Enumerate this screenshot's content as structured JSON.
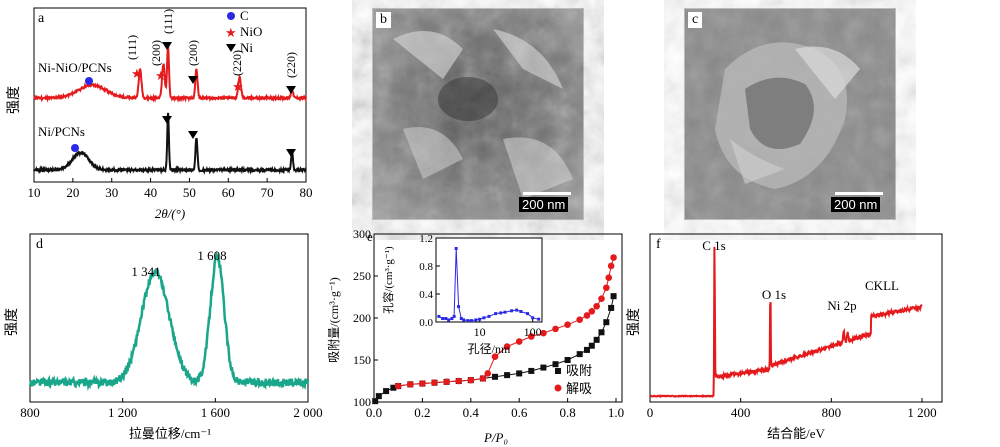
{
  "chart_data": [
    {
      "panel": "a",
      "type": "line",
      "xlabel": "2θ/(°)",
      "ylabel": "强度",
      "x_ticks": [
        "10",
        "20",
        "30",
        "40",
        "50",
        "60",
        "70",
        "80"
      ],
      "xlim": [
        10,
        80
      ],
      "legend": [
        {
          "symbol": "circle",
          "label": "C",
          "color": "#2a2ae6"
        },
        {
          "symbol": "star",
          "label": "NiO",
          "color": "#e41a1c"
        },
        {
          "symbol": "triangle-down",
          "label": "Ni",
          "color": "#000000"
        }
      ],
      "series": [
        {
          "name": "Ni-NiO/PCNs",
          "color": "#e41a1c",
          "peaks": [
            {
              "x": 25,
              "h": 0.25,
              "w": 5
            },
            {
              "x": 37.3,
              "h": 0.55,
              "w": 0.5
            },
            {
              "x": 43.3,
              "h": 0.65,
              "w": 0.5
            },
            {
              "x": 44.5,
              "h": 1.0,
              "w": 0.35
            },
            {
              "x": 51.8,
              "h": 0.55,
              "w": 0.4
            },
            {
              "x": 62.9,
              "h": 0.4,
              "w": 0.5
            },
            {
              "x": 76.4,
              "h": 0.15,
              "w": 0.4
            }
          ]
        },
        {
          "name": "Ni/PCNs",
          "color": "#111111",
          "peaks": [
            {
              "x": 22,
              "h": 0.3,
              "w": 3
            },
            {
              "x": 44.5,
              "h": 1.0,
              "w": 0.3
            },
            {
              "x": 51.8,
              "h": 0.55,
              "w": 0.35
            },
            {
              "x": 76.4,
              "h": 0.3,
              "w": 0.35
            }
          ]
        }
      ],
      "annotations": [
        "(111)",
        "(200)",
        "(111)",
        "(200)",
        "(220)",
        "(220)"
      ]
    },
    {
      "panel": "d",
      "type": "line",
      "xlabel": "拉曼位移/cm⁻¹",
      "ylabel": "强度",
      "x_ticks": [
        "800",
        "1 200",
        "1 600",
        "2 000"
      ],
      "xlim": [
        800,
        2000
      ],
      "peak_labels": [
        "1 341",
        "1 608"
      ],
      "series": [
        {
          "name": "",
          "color": "#1aa68a",
          "peaks": [
            {
              "x": 1341,
              "h": 0.58,
              "w": 85
            },
            {
              "x": 1608,
              "h": 0.66,
              "w": 42
            }
          ],
          "baseline": 0.05
        }
      ]
    },
    {
      "panel": "e",
      "type": "scatter",
      "xlabel": "P/P₀",
      "ylabel": "吸附量/(cm³·g⁻¹)",
      "x_ticks": [
        "0.0",
        "0.2",
        "0.4",
        "0.6",
        "0.8",
        "1.0"
      ],
      "y_ticks": [
        "100",
        "150",
        "200",
        "250",
        "300"
      ],
      "xlim": [
        0,
        1.0
      ],
      "ylim": [
        100,
        300
      ],
      "legend": [
        {
          "symbol": "square",
          "label": "吸附",
          "color": "#111111"
        },
        {
          "symbol": "circle",
          "label": "解吸",
          "color": "#e41a1c"
        }
      ],
      "series": [
        {
          "name": "吸附",
          "color": "#111111",
          "x": [
            0.005,
            0.02,
            0.05,
            0.08,
            0.1,
            0.15,
            0.2,
            0.25,
            0.3,
            0.35,
            0.4,
            0.45,
            0.5,
            0.55,
            0.6,
            0.65,
            0.7,
            0.75,
            0.8,
            0.85,
            0.88,
            0.9,
            0.92,
            0.94,
            0.96,
            0.98,
            0.99
          ],
          "y": [
            101,
            107,
            113,
            117,
            119,
            121,
            122,
            123,
            124,
            125,
            126,
            128,
            130,
            132,
            134,
            137,
            141,
            145,
            150,
            157,
            162,
            167,
            174,
            183,
            195,
            212,
            226
          ]
        },
        {
          "name": "解吸",
          "color": "#e41a1c",
          "x": [
            0.99,
            0.98,
            0.97,
            0.96,
            0.94,
            0.92,
            0.9,
            0.88,
            0.85,
            0.8,
            0.75,
            0.7,
            0.65,
            0.6,
            0.55,
            0.5,
            0.47,
            0.45,
            0.4,
            0.35,
            0.3,
            0.25,
            0.2,
            0.15,
            0.1
          ],
          "y": [
            272,
            262,
            248,
            236,
            223,
            214,
            208,
            203,
            198,
            192,
            187,
            182,
            178,
            172,
            166,
            154,
            134,
            128,
            126,
            125,
            124,
            123,
            122,
            121,
            119
          ]
        }
      ],
      "inset": {
        "xlabel": "孔径/nm",
        "ylabel": "孔容/(cm³·g⁻¹)",
        "x_ticks": [
          "10",
          "100"
        ],
        "y_ticks": [
          "0.0",
          "0.4",
          "0.8",
          "1.2"
        ],
        "xlim": [
          1.5,
          150
        ],
        "ylim": [
          0,
          1.2
        ],
        "x": [
          1.7,
          2,
          2.3,
          2.6,
          3,
          3.3,
          3.6,
          4,
          4.5,
          5,
          6,
          7,
          8.5,
          10,
          12,
          15,
          20,
          25,
          30,
          40,
          50,
          60,
          80,
          100,
          130
        ],
        "y": [
          0.08,
          0.05,
          0.05,
          0.03,
          0.05,
          0.08,
          1.05,
          0.22,
          0.05,
          0.03,
          0.02,
          0.02,
          0.03,
          0.04,
          0.06,
          0.08,
          0.12,
          0.13,
          0.14,
          0.16,
          0.17,
          0.15,
          0.12,
          0.06,
          0.04
        ],
        "color": "#2a2ae6"
      }
    },
    {
      "panel": "f",
      "type": "line",
      "xlabel": "结合能/eV",
      "ylabel": "强度",
      "x_ticks": [
        "0",
        "400",
        "800",
        "1 200"
      ],
      "xlim": [
        0,
        1200
      ],
      "peak_labels": [
        "C 1s",
        "O 1s",
        "Ni 2p",
        "CKLL"
      ],
      "series": [
        {
          "name": "",
          "color": "#e41a1c",
          "peaks": [
            {
              "x": 284.6,
              "h": 0.75,
              "w": 2
            },
            {
              "x": 531,
              "h": 0.42,
              "w": 2
            },
            {
              "x": 855,
              "h": 0.05,
              "w": 4
            },
            {
              "x": 872,
              "h": 0.04,
              "w": 4
            }
          ]
        }
      ]
    }
  ],
  "panels": {
    "a": {
      "letter": "a"
    },
    "b": {
      "letter": "b",
      "scale_bar": "200 nm"
    },
    "c": {
      "letter": "c",
      "scale_bar": "200 nm"
    },
    "d": {
      "letter": "d"
    },
    "e": {
      "letter": "e"
    },
    "f": {
      "letter": "f"
    }
  }
}
